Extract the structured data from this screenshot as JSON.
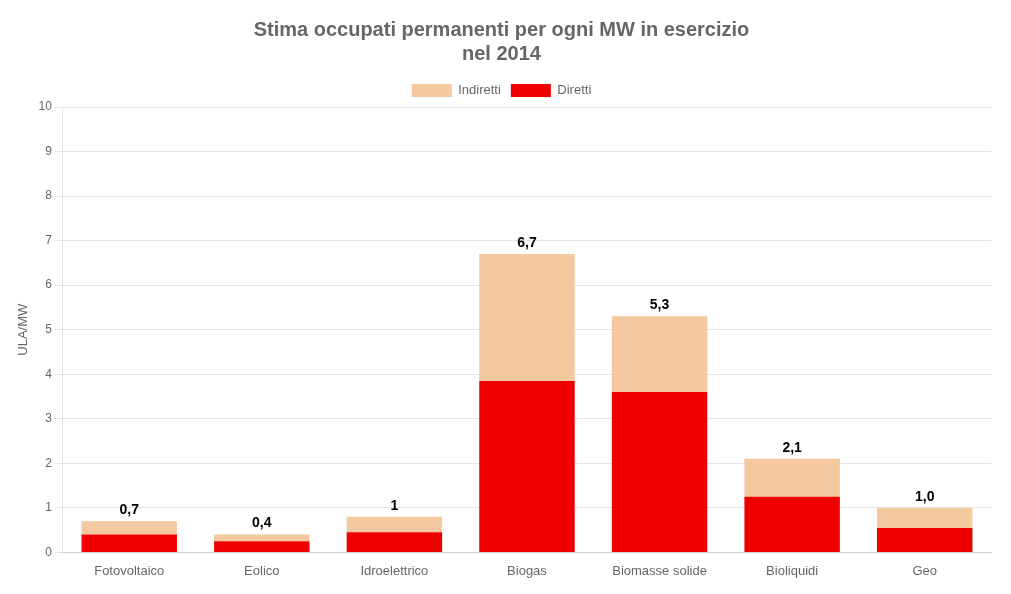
{
  "chart_data": {
    "type": "bar",
    "title": [
      "Stima occupati permanenti per ogni MW in esercizio",
      "nel 2014"
    ],
    "y_label": "ULA/MW",
    "categories": [
      "Fotovoltaico",
      "Eolico",
      "Idroelettrico",
      "Biogas",
      "Biomasse solide",
      "Bioliquidi",
      "Geo"
    ],
    "series": [
      {
        "name": "Diretti",
        "color": "#ee0000",
        "values": [
          0.4,
          0.25,
          0.45,
          3.85,
          3.6,
          1.25,
          0.55
        ]
      },
      {
        "name": "Indiretti",
        "color": "#f5c9a0",
        "values": [
          0.3,
          0.15,
          0.35,
          2.85,
          1.7,
          0.85,
          0.45
        ]
      }
    ],
    "stacked": true,
    "annotations": [
      {
        "category": "Fotovoltaico",
        "value": 0.7,
        "label": "0,7"
      },
      {
        "category": "Eolico",
        "value": 0.4,
        "label": "0,4"
      },
      {
        "category": "Idroelettrico",
        "value": 0.8,
        "label": "1"
      },
      {
        "category": "Biogas",
        "value": 6.7,
        "label": "6,7"
      },
      {
        "category": "Biomasse solide",
        "value": 5.3,
        "label": "5,3"
      },
      {
        "category": "Bioliquidi",
        "value": 2.1,
        "label": "2,1"
      },
      {
        "category": "Geo",
        "value": 1.0,
        "label": "1,0"
      }
    ],
    "ylim": [
      0,
      10
    ],
    "yticks": [
      0,
      1,
      2,
      3,
      4,
      5,
      6,
      7,
      8,
      9,
      10
    ],
    "grid": true,
    "legend": "top"
  }
}
